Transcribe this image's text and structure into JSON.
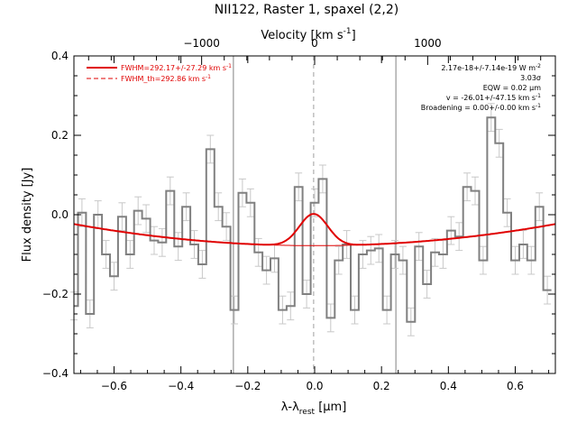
{
  "chart_data": {
    "type": "line",
    "title": "NII122, Raster 1, spaxel (2,2)",
    "xlabel": "λ-λrest [μm]",
    "xlabel_parts": {
      "main": "λ-λ",
      "sub": "rest",
      "unit": " [μm]"
    },
    "ylabel": "Flux density [Jy]",
    "x2label": "Velocity [km s⁻¹]",
    "x2label_parts": {
      "main": "Velocity [km s",
      "sup": "-1",
      "close": "]"
    },
    "xlim": [
      -0.72,
      0.72
    ],
    "ylim": [
      -0.4,
      0.4
    ],
    "x2lim": [
      -2130,
      2130
    ],
    "xticks": [
      {
        "v": -0.6,
        "label": "−0.6"
      },
      {
        "v": -0.4,
        "label": "−0.4"
      },
      {
        "v": -0.2,
        "label": "−0.2"
      },
      {
        "v": 0.0,
        "label": "0.0"
      },
      {
        "v": 0.2,
        "label": "0.2"
      },
      {
        "v": 0.4,
        "label": "0.4"
      },
      {
        "v": 0.6,
        "label": "0.6"
      }
    ],
    "yticks": [
      {
        "v": -0.4,
        "label": "−0.4"
      },
      {
        "v": -0.2,
        "label": "−0.2"
      },
      {
        "v": 0.0,
        "label": "0.0"
      },
      {
        "v": 0.2,
        "label": "0.2"
      },
      {
        "v": 0.4,
        "label": "0.4"
      }
    ],
    "x2ticks": [
      {
        "v": -1000,
        "label": "−1000"
      },
      {
        "v": 0,
        "label": "0"
      },
      {
        "v": 1000,
        "label": "1000"
      }
    ],
    "vlines": [
      {
        "x": -0.243,
        "style": "solid"
      },
      {
        "x": 0.243,
        "style": "solid"
      },
      {
        "x": -0.003,
        "style": "dashed"
      }
    ],
    "spectrum": {
      "name": "data",
      "color": "#808080",
      "error": 0.035,
      "x": [
        -0.72,
        -0.696,
        -0.672,
        -0.648,
        -0.624,
        -0.6,
        -0.576,
        -0.552,
        -0.528,
        -0.504,
        -0.48,
        -0.456,
        -0.432,
        -0.408,
        -0.384,
        -0.36,
        -0.336,
        -0.312,
        -0.288,
        -0.264,
        -0.24,
        -0.216,
        -0.192,
        -0.168,
        -0.144,
        -0.12,
        -0.096,
        -0.072,
        -0.048,
        -0.024,
        0.0,
        0.024,
        0.048,
        0.072,
        0.096,
        0.12,
        0.144,
        0.168,
        0.192,
        0.216,
        0.24,
        0.264,
        0.288,
        0.312,
        0.336,
        0.36,
        0.384,
        0.408,
        0.432,
        0.456,
        0.48,
        0.504,
        0.528,
        0.552,
        0.576,
        0.6,
        0.624,
        0.648,
        0.672,
        0.696
      ],
      "y": [
        -0.23,
        0.005,
        -0.25,
        0.0,
        -0.1,
        -0.155,
        -0.005,
        -0.1,
        0.01,
        -0.01,
        -0.065,
        -0.07,
        0.06,
        -0.08,
        0.02,
        -0.075,
        -0.125,
        0.165,
        0.02,
        -0.03,
        -0.24,
        0.055,
        0.03,
        -0.095,
        -0.14,
        -0.11,
        -0.24,
        -0.23,
        0.07,
        -0.2,
        0.03,
        0.09,
        -0.26,
        -0.115,
        -0.075,
        -0.24,
        -0.1,
        -0.09,
        -0.085,
        -0.24,
        -0.1,
        -0.115,
        -0.27,
        -0.08,
        -0.175,
        -0.095,
        -0.1,
        -0.04,
        -0.055,
        0.07,
        0.06,
        -0.115,
        0.245,
        0.18,
        0.005,
        -0.115,
        -0.075,
        -0.115,
        0.02,
        -0.19
      ]
    },
    "fits": [
      {
        "name": "FWHM=292.17+/-27.29 km s⁻¹",
        "legend_main": "FWHM=292.17+/-27.29 km s",
        "legend_sup": "-1",
        "color": "#e00000",
        "style": "solid",
        "model": {
          "type": "gaussian+quadratic",
          "amplitude": 0.08,
          "center": -0.003,
          "sigma": 0.0425,
          "baseline": {
            "x0": 0.0,
            "c0": -0.078,
            "c2": 0.105
          }
        }
      },
      {
        "name": "FWHM_th=292.86 km s⁻¹",
        "legend_main": "FWHM_th=292.86 km s",
        "legend_sup": "-1",
        "color": "#e00000",
        "style": "dashed"
      }
    ],
    "annotations": [
      {
        "text": "2.17e-18+/-7.14e-19 W m",
        "sup": "-2"
      },
      {
        "text": "3.03σ",
        "sup": ""
      },
      {
        "text": "EQW = 0.02 μm",
        "sup": ""
      },
      {
        "text": "v = -26.01+/-47.15 km s",
        "sup": "-1"
      },
      {
        "text": "Broadening = 0.00+/-0.00 km s",
        "sup": "-1"
      }
    ],
    "grid": false,
    "legend_position": "top-left"
  }
}
